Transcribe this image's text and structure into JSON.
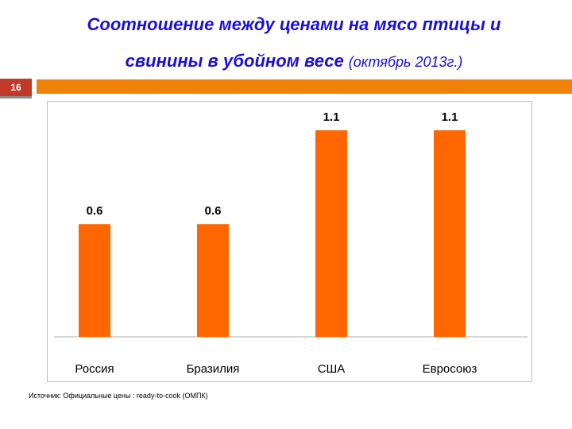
{
  "slide": {
    "title_line1": "Соотношение между ценами на мясо птицы и",
    "title_line2": "свинины в убойном весе",
    "title_sub": "(октябрь 2013г.)",
    "page_number": "16",
    "source": "Источник:  Официальные цены : ready-to-cook (ОМПК)"
  },
  "colors": {
    "bar": "#ff6600",
    "title": "#1a10d8",
    "accent": "#f0820a",
    "page_badge": "#c0392b"
  },
  "chart_data": {
    "type": "bar",
    "categories": [
      "Россия",
      "Бразилия",
      "США",
      "Евросоюз"
    ],
    "values": [
      0.6,
      0.6,
      1.1,
      1.1
    ],
    "value_labels": [
      "0.6",
      "0.6",
      "1.1",
      "1.1"
    ],
    "title": "",
    "xlabel": "",
    "ylabel": "",
    "ylim": [
      0,
      1.1
    ],
    "grid": false,
    "legend": "none"
  }
}
